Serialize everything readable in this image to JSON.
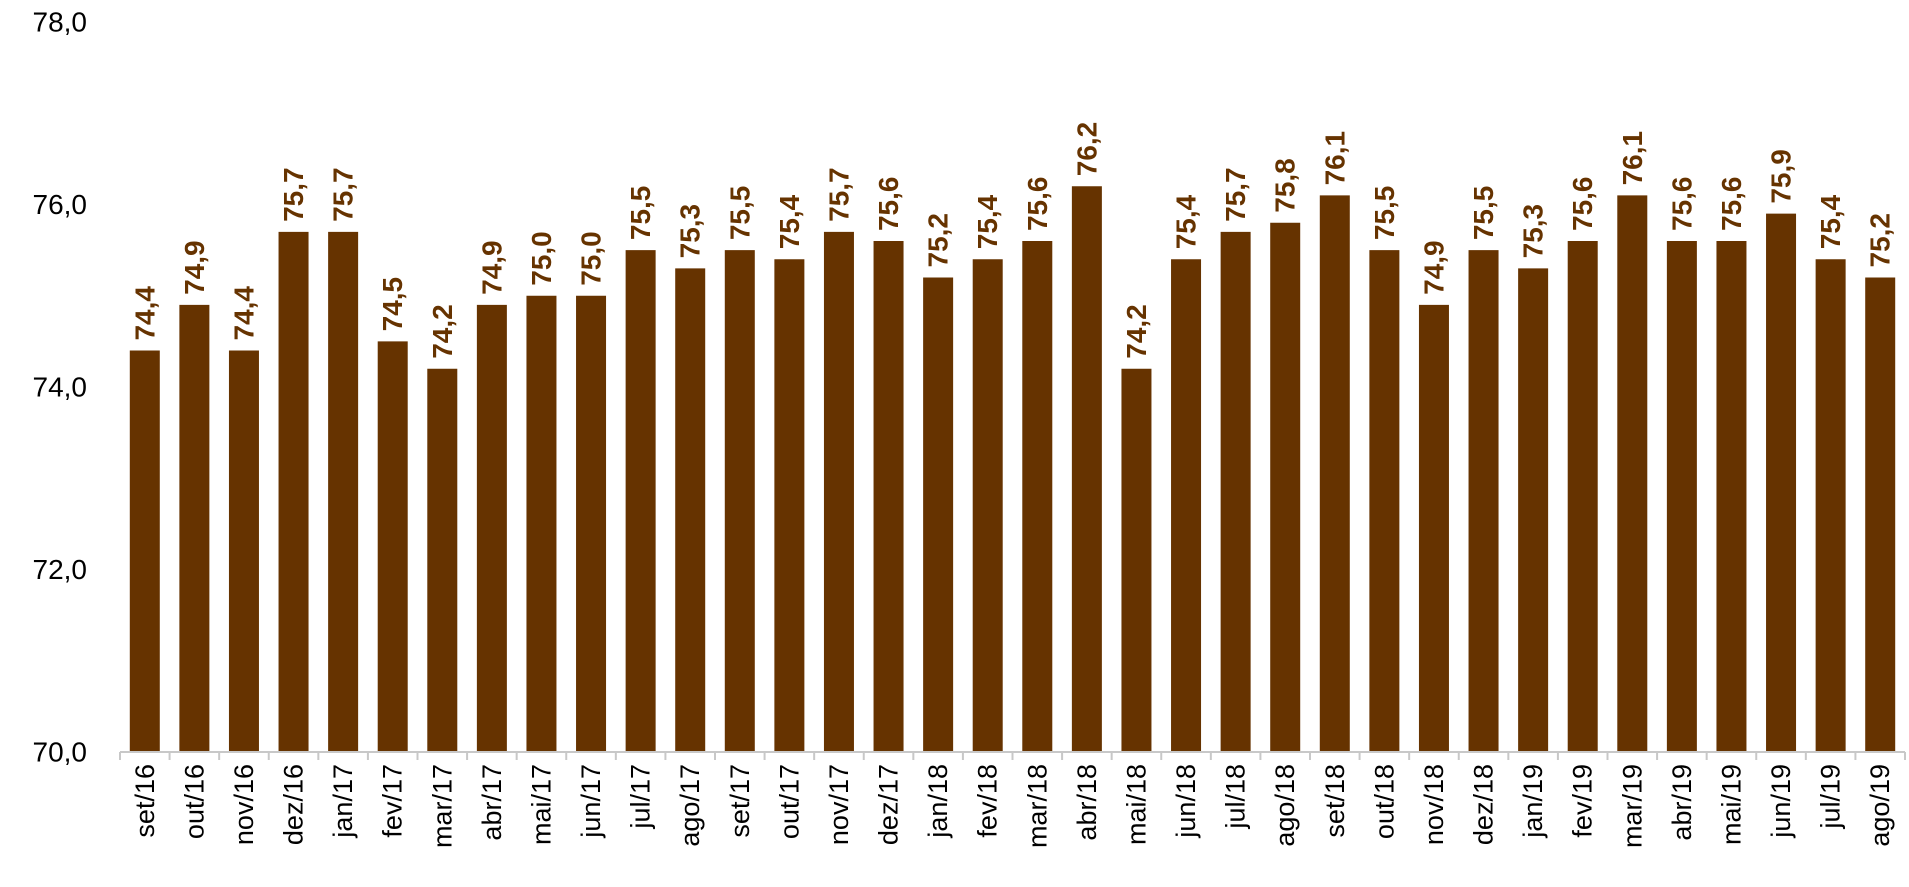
{
  "chart_data": {
    "type": "bar",
    "title": "",
    "xlabel": "",
    "ylabel": "",
    "ylim": [
      70,
      78
    ],
    "yticks": [
      "70,0",
      "72,0",
      "74,0",
      "76,0",
      "78,0"
    ],
    "grid": false,
    "legend": "none",
    "categories": [
      "set/16",
      "out/16",
      "nov/16",
      "dez/16",
      "jan/17",
      "fev/17",
      "mar/17",
      "abr/17",
      "mai/17",
      "jun/17",
      "jul/17",
      "ago/17",
      "set/17",
      "out/17",
      "nov/17",
      "dez/17",
      "jan/18",
      "fev/18",
      "mar/18",
      "abr/18",
      "mai/18",
      "jun/18",
      "jul/18",
      "ago/18",
      "set/18",
      "out/18",
      "nov/18",
      "dez/18",
      "jan/19",
      "fev/19",
      "mar/19",
      "abr/19",
      "mai/19",
      "jun/19",
      "jul/19",
      "ago/19"
    ],
    "values": [
      74.4,
      74.9,
      74.4,
      75.7,
      75.7,
      74.5,
      74.2,
      74.9,
      75.0,
      75.0,
      75.5,
      75.3,
      75.5,
      75.4,
      75.7,
      75.6,
      75.2,
      75.4,
      75.6,
      76.2,
      74.2,
      75.4,
      75.7,
      75.8,
      76.1,
      75.5,
      74.9,
      75.5,
      75.3,
      75.6,
      76.1,
      75.6,
      75.6,
      75.9,
      75.4,
      75.2
    ],
    "data_labels": [
      "74,4",
      "74,9",
      "74,4",
      "75,7",
      "75,7",
      "74,5",
      "74,2",
      "74,9",
      "75,0",
      "75,0",
      "75,5",
      "75,3",
      "75,5",
      "75,4",
      "75,7",
      "75,6",
      "75,2",
      "75,4",
      "75,6",
      "76,2",
      "74,2",
      "75,4",
      "75,7",
      "75,8",
      "76,1",
      "75,5",
      "74,9",
      "75,5",
      "75,3",
      "75,6",
      "76,1",
      "75,6",
      "75,6",
      "75,9",
      "75,4",
      "75,2"
    ],
    "colors": {
      "bar": "#663300",
      "label": "#663300",
      "axis": "#c8c8c8"
    }
  }
}
